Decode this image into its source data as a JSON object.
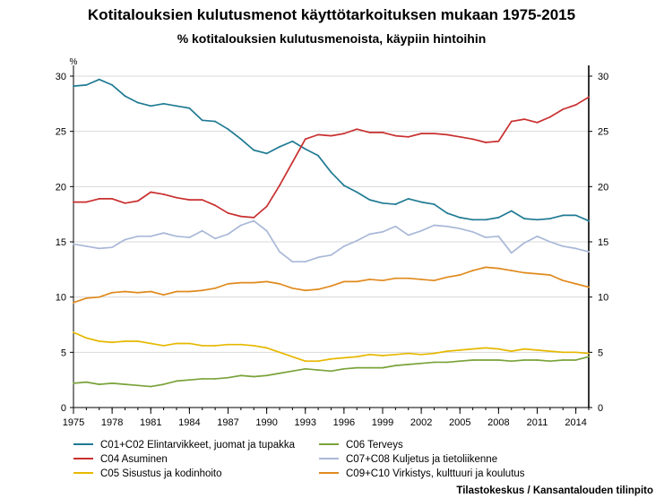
{
  "chart_data": {
    "type": "line",
    "title": "Kotitalouksien kulutusmenot käyttötarkoituksen mukaan 1975-2015",
    "subtitle": "% kotitalouksien kulutusmenoista, käypiin hintoihin",
    "ylabel": "%",
    "ylim": [
      0,
      30
    ],
    "yticks": [
      "0",
      "5",
      "10",
      "15",
      "20",
      "25",
      "30"
    ],
    "xlim": [
      1975,
      2015
    ],
    "xticks": [
      "1975",
      "1978",
      "1981",
      "1984",
      "1987",
      "1990",
      "1993",
      "1996",
      "1999",
      "2002",
      "2005",
      "2008",
      "2011",
      "2014"
    ],
    "x": [
      1975,
      1976,
      1977,
      1978,
      1979,
      1980,
      1981,
      1982,
      1983,
      1984,
      1985,
      1986,
      1987,
      1988,
      1989,
      1990,
      1991,
      1992,
      1993,
      1994,
      1995,
      1996,
      1997,
      1998,
      1999,
      2000,
      2001,
      2002,
      2003,
      2004,
      2005,
      2006,
      2007,
      2008,
      2009,
      2010,
      2011,
      2012,
      2013,
      2014,
      2015
    ],
    "series": [
      {
        "name": "C01+C02 Elintarvikkeet, juomat ja tupakka",
        "color": "#1f7a93",
        "values": [
          29.1,
          29.2,
          29.7,
          29.2,
          28.2,
          27.6,
          27.3,
          27.5,
          27.3,
          27.1,
          26.0,
          25.9,
          25.2,
          24.3,
          23.3,
          23.0,
          23.6,
          24.1,
          23.4,
          22.8,
          21.3,
          20.1,
          19.5,
          18.8,
          18.5,
          18.4,
          18.9,
          18.6,
          18.4,
          17.6,
          17.2,
          17.0,
          17.0,
          17.2,
          17.8,
          17.1,
          17.0,
          17.1,
          17.4,
          17.4,
          16.9
        ]
      },
      {
        "name": "C04 Asuminen",
        "color": "#c92f2f",
        "values": [
          18.6,
          18.6,
          18.9,
          18.9,
          18.5,
          18.7,
          19.5,
          19.3,
          19.0,
          18.8,
          18.8,
          18.3,
          17.6,
          17.3,
          17.2,
          18.2,
          20.1,
          22.2,
          24.3,
          24.7,
          24.6,
          24.8,
          25.2,
          24.9,
          24.9,
          24.6,
          24.5,
          24.8,
          24.8,
          24.7,
          24.5,
          24.3,
          24.0,
          24.1,
          25.9,
          26.1,
          25.8,
          26.3,
          27.0,
          27.4,
          28.1
        ]
      },
      {
        "name": "C05 Sisustus ja kodinhoito",
        "color": "#e6b800",
        "values": [
          6.8,
          6.3,
          6.0,
          5.9,
          6.0,
          6.0,
          5.8,
          5.6,
          5.8,
          5.8,
          5.6,
          5.6,
          5.7,
          5.7,
          5.6,
          5.4,
          5.0,
          4.6,
          4.2,
          4.2,
          4.4,
          4.5,
          4.6,
          4.8,
          4.7,
          4.8,
          4.9,
          4.8,
          4.9,
          5.1,
          5.2,
          5.3,
          5.4,
          5.3,
          5.1,
          5.3,
          5.2,
          5.1,
          5.0,
          5.0,
          4.9
        ]
      },
      {
        "name": "C06 Terveys",
        "color": "#7aa33a",
        "values": [
          2.2,
          2.3,
          2.1,
          2.2,
          2.1,
          2.0,
          1.9,
          2.1,
          2.4,
          2.5,
          2.6,
          2.6,
          2.7,
          2.9,
          2.8,
          2.9,
          3.1,
          3.3,
          3.5,
          3.4,
          3.3,
          3.5,
          3.6,
          3.6,
          3.6,
          3.8,
          3.9,
          4.0,
          4.1,
          4.1,
          4.2,
          4.3,
          4.3,
          4.3,
          4.2,
          4.3,
          4.3,
          4.2,
          4.3,
          4.3,
          4.6
        ]
      },
      {
        "name": "C07+C08 Kuljetus ja tietoliikenne",
        "color": "#a9b8d8",
        "values": [
          14.8,
          14.6,
          14.4,
          14.5,
          15.2,
          15.5,
          15.5,
          15.8,
          15.5,
          15.4,
          16.0,
          15.3,
          15.7,
          16.5,
          16.9,
          16.0,
          14.1,
          13.2,
          13.2,
          13.6,
          13.8,
          14.6,
          15.1,
          15.7,
          15.9,
          16.4,
          15.6,
          16.0,
          16.5,
          16.4,
          16.2,
          15.9,
          15.4,
          15.5,
          14.0,
          14.9,
          15.5,
          15.0,
          14.6,
          14.4,
          14.1
        ]
      },
      {
        "name": "C09+C10 Virkistys, kulttuuri ja koulutus",
        "color": "#e08a1e",
        "values": [
          9.5,
          9.9,
          10.0,
          10.4,
          10.5,
          10.4,
          10.5,
          10.2,
          10.5,
          10.5,
          10.6,
          10.8,
          11.2,
          11.3,
          11.3,
          11.4,
          11.2,
          10.8,
          10.6,
          10.7,
          11.0,
          11.4,
          11.4,
          11.6,
          11.5,
          11.7,
          11.7,
          11.6,
          11.5,
          11.8,
          12.0,
          12.4,
          12.7,
          12.6,
          12.4,
          12.2,
          12.1,
          12.0,
          11.5,
          11.2,
          10.9
        ]
      }
    ],
    "legend_position": "bottom",
    "source": "Tilastokeskus / Kansantalouden tilinpito"
  }
}
